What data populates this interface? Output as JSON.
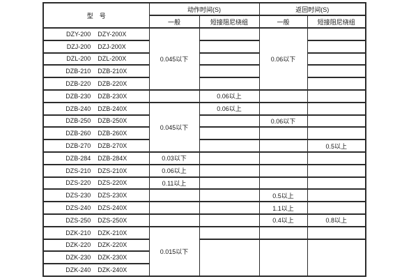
{
  "colors": {
    "border": "#2b2b2b",
    "text": "#1a1a1a",
    "background": "#ffffff"
  },
  "table": {
    "header": {
      "model": "型　号",
      "action_time": "动作时间(S)",
      "return_time": "返回时间(S)",
      "sub": [
        "一般",
        "短接阻尼绕组",
        "一般",
        "短接阻尼绕组"
      ]
    },
    "rows": [
      {
        "models": [
          "DZY-200",
          "DZY-200X"
        ],
        "cells": {
          "action_general": {
            "t": "0.045以下",
            "span": 5
          },
          "action_short": {
            "t": ""
          },
          "return_general": {
            "t": "0.06以下",
            "span": 5
          },
          "return_short": {
            "t": ""
          }
        }
      },
      {
        "models": [
          "DZJ-200",
          "DZJ-200X"
        ],
        "cells": {
          "action_general": null,
          "action_short": {
            "t": ""
          },
          "return_general": null,
          "return_short": {
            "t": ""
          }
        }
      },
      {
        "models": [
          "DZL-200",
          "DZL-200X"
        ],
        "cells": {
          "action_general": null,
          "action_short": {
            "t": ""
          },
          "return_general": null,
          "return_short": {
            "t": ""
          }
        }
      },
      {
        "models": [
          "DZB-210",
          "DZB-210X"
        ],
        "cells": {
          "action_general": null,
          "action_short": {
            "t": ""
          },
          "return_general": null,
          "return_short": {
            "t": ""
          }
        }
      },
      {
        "models": [
          "DZB-220",
          "DZB-220X"
        ],
        "cells": {
          "action_general": null,
          "action_short": {
            "t": ""
          },
          "return_general": null,
          "return_short": {
            "t": ""
          }
        }
      },
      {
        "models": [
          "DZB-230",
          "DZB-230X"
        ],
        "cells": {
          "action_general": {
            "t": ""
          },
          "action_short": {
            "t": "0.06以上"
          },
          "return_general": {
            "t": ""
          },
          "return_short": {
            "t": ""
          }
        }
      },
      {
        "models": [
          "DZB-240",
          "DZB-240X"
        ],
        "cells": {
          "action_general": {
            "t": "0.045以下",
            "span": 4
          },
          "action_short": {
            "t": "0.06以上"
          },
          "return_general": {
            "t": ""
          },
          "return_short": {
            "t": ""
          }
        }
      },
      {
        "models": [
          "DZB-250",
          "DZB-250X"
        ],
        "cells": {
          "action_general": null,
          "action_short": {
            "t": ""
          },
          "return_general": {
            "t": "0.06以下"
          },
          "return_short": {
            "t": ""
          }
        }
      },
      {
        "models": [
          "DZB-260",
          "DZB-260X"
        ],
        "cells": {
          "action_general": null,
          "action_short": {
            "t": ""
          },
          "return_general": {
            "t": ""
          },
          "return_short": {
            "t": ""
          }
        }
      },
      {
        "models": [
          "DZB-270",
          "DZB-270X"
        ],
        "cells": {
          "action_general": null,
          "action_short": {
            "t": ""
          },
          "return_general": {
            "t": ""
          },
          "return_short": {
            "t": "0.5以上"
          }
        }
      },
      {
        "models": [
          "DZB-284",
          "DZB-284X"
        ],
        "cells": {
          "action_general": {
            "t": "0.03以下"
          },
          "action_short": {
            "t": ""
          },
          "return_general": {
            "t": ""
          },
          "return_short": {
            "t": ""
          }
        }
      },
      {
        "models": [
          "DZS-210",
          "DZS-210X"
        ],
        "cells": {
          "action_general": {
            "t": "0.06以上"
          },
          "action_short": {
            "t": ""
          },
          "return_general": {
            "t": ""
          },
          "return_short": {
            "t": ""
          }
        }
      },
      {
        "models": [
          "DZS-220",
          "DZS-220X"
        ],
        "cells": {
          "action_general": {
            "t": "0.11以上"
          },
          "action_short": {
            "t": ""
          },
          "return_general": {
            "t": ""
          },
          "return_short": {
            "t": ""
          }
        }
      },
      {
        "models": [
          "DZS-230",
          "DZS-230X"
        ],
        "cells": {
          "action_general": {
            "t": ""
          },
          "action_short": {
            "t": ""
          },
          "return_general": {
            "t": "0.5以上"
          },
          "return_short": {
            "t": ""
          }
        }
      },
      {
        "models": [
          "DZS-240",
          "DZS-240X"
        ],
        "cells": {
          "action_general": {
            "t": ""
          },
          "action_short": {
            "t": ""
          },
          "return_general": {
            "t": "1.1以上"
          },
          "return_short": {
            "t": ""
          }
        }
      },
      {
        "models": [
          "DZS-250",
          "DZS-250X"
        ],
        "cells": {
          "action_general": {
            "t": ""
          },
          "action_short": {
            "t": ""
          },
          "return_general": {
            "t": "0.4以上"
          },
          "return_short": {
            "t": "0.8以上"
          }
        }
      },
      {
        "models": [
          "DZK-210",
          "DZK-210X"
        ],
        "cells": {
          "action_general": {
            "t": "0.015以下",
            "span": 4
          },
          "action_short": {
            "t": ""
          },
          "return_general": {
            "t": ""
          },
          "return_short": {
            "t": ""
          }
        }
      },
      {
        "models": [
          "DZK-220",
          "DZK-220X"
        ],
        "cells": {
          "action_general": null,
          "action_short": {
            "t": "",
            "span": 3
          },
          "return_general": {
            "t": "",
            "span": 3
          },
          "return_short": {
            "t": "",
            "span": 3
          }
        }
      },
      {
        "models": [
          "DZK-230",
          "DZK-230X"
        ],
        "cells": {
          "action_general": null,
          "action_short": null,
          "return_general": null,
          "return_short": null
        }
      },
      {
        "models": [
          "DZK-240",
          "DZK-240X"
        ],
        "cells": {
          "action_general": null,
          "action_short": null,
          "return_general": null,
          "return_short": null
        }
      }
    ]
  }
}
